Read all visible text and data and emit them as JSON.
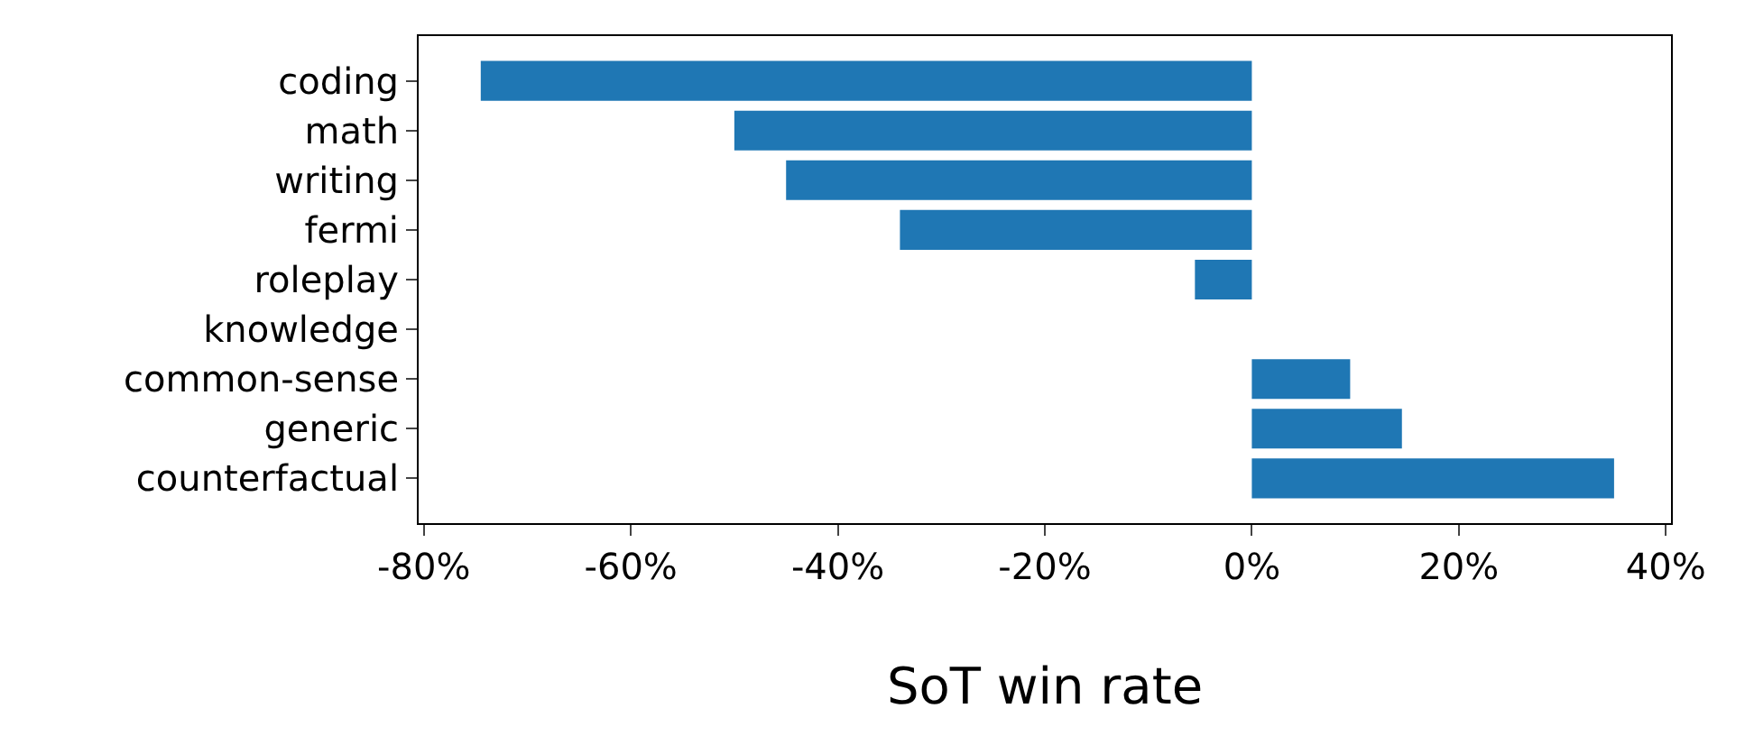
{
  "chart_data": {
    "type": "bar",
    "orientation": "horizontal",
    "xlabel": "SoT win rate",
    "categories": [
      "coding",
      "math",
      "writing",
      "fermi",
      "roleplay",
      "knowledge",
      "common-sense",
      "generic",
      "counterfactual"
    ],
    "values": [
      -74.5,
      -50,
      -45,
      -34,
      -5.5,
      0,
      9.5,
      14.5,
      35
    ],
    "color": "#1f77b4",
    "xlim": [
      -80.5,
      40.5
    ],
    "xticks": [
      {
        "value": -80,
        "label": "-80%"
      },
      {
        "value": -60,
        "label": "-60%"
      },
      {
        "value": -40,
        "label": "-40%"
      },
      {
        "value": -20,
        "label": "-20%"
      },
      {
        "value": 0,
        "label": "0%"
      },
      {
        "value": 20,
        "label": "20%"
      },
      {
        "value": 40,
        "label": "40%"
      }
    ]
  }
}
